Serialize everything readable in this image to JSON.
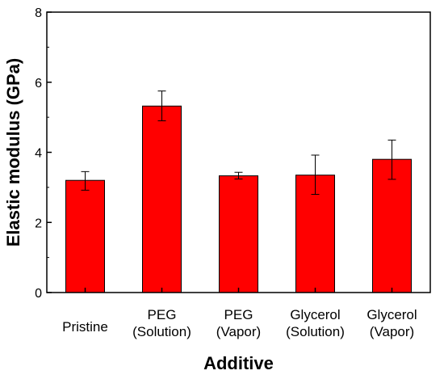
{
  "chart_data": {
    "type": "bar",
    "categories": [
      [
        "Pristine"
      ],
      [
        "PEG",
        "(Solution)"
      ],
      [
        "PEG",
        "(Vapor)"
      ],
      [
        "Glycerol",
        "(Solution)"
      ],
      [
        "Glycerol",
        "(Vapor)"
      ]
    ],
    "values": [
      3.2,
      5.32,
      3.33,
      3.35,
      3.8
    ],
    "error_low": [
      2.92,
      4.9,
      3.24,
      2.8,
      3.23
    ],
    "error_high": [
      3.45,
      5.75,
      3.43,
      3.92,
      4.35
    ],
    "xlabel": "Additive",
    "ylabel": "Elastic modulus (GPa)",
    "ylim": [
      0,
      8
    ],
    "yticks": [
      0,
      2,
      4,
      6,
      8
    ],
    "bar_color": "#ff0000",
    "bar_edge_color": "#000000",
    "grid": false,
    "legend": "none"
  }
}
